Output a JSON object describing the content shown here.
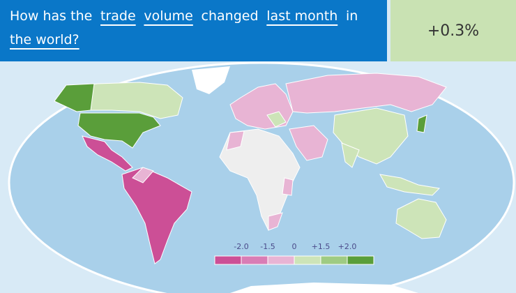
{
  "header": {
    "question": [
      {
        "text": "How has the",
        "selectable": false
      },
      {
        "text": "trade",
        "selectable": true
      },
      {
        "text": "volume",
        "selectable": true
      },
      {
        "text": "changed",
        "selectable": false
      },
      {
        "text": "last month",
        "selectable": true
      },
      {
        "text": "in",
        "selectable": false
      },
      {
        "text": "the world?",
        "selectable": true
      }
    ]
  },
  "result": "+0.3%",
  "legend": {
    "labels": [
      "-2.0",
      "-1.5",
      "0",
      "+1.5",
      "+2.0"
    ],
    "colors": [
      "#cc4f96",
      "#d97db5",
      "#e8b4d4",
      "#cde4b8",
      "#9fcb83",
      "#5a9e3a"
    ]
  }
}
